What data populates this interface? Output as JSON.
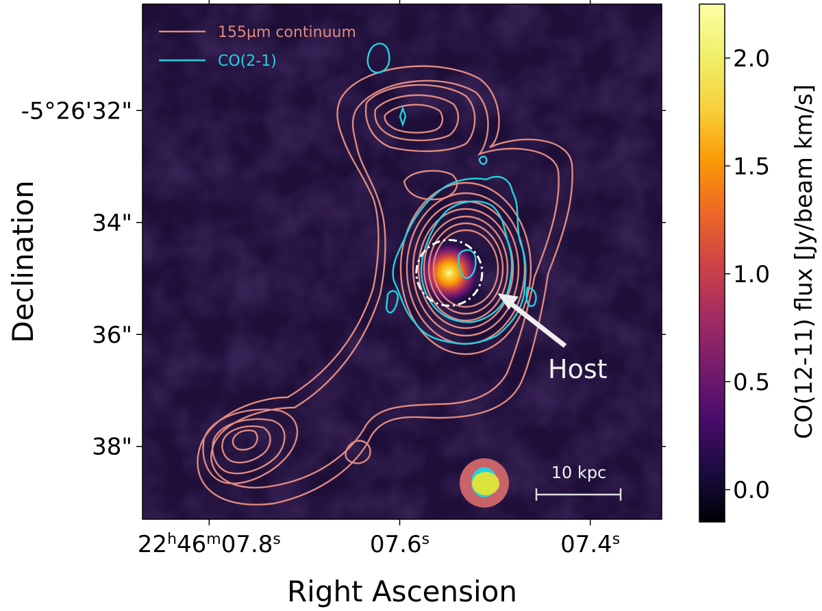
{
  "chart_data": {
    "type": "heatmap",
    "title": "",
    "xlabel": "Right Ascension",
    "ylabel": "Declination",
    "x_ticks": [
      {
        "label": "22h46m07.8s",
        "ra_seconds": 7.8
      },
      {
        "label": "07.6s",
        "ra_seconds": 7.6
      },
      {
        "label": "07.4s",
        "ra_seconds": 7.4
      }
    ],
    "y_ticks": [
      {
        "label": "-5°26'32\"",
        "dec_arcsec": 32
      },
      {
        "label": "34\"",
        "dec_arcsec": 34
      },
      {
        "label": "36\"",
        "dec_arcsec": 36
      },
      {
        "label": "38\"",
        "dec_arcsec": 38
      }
    ],
    "ra_range_seconds": [
      7.87,
      7.325
    ],
    "dec_range_arcsec": [
      30.1,
      39.3
    ],
    "colorbar": {
      "label": "CO(12-11) flux [Jy/beam km/s]",
      "colormap": "inferno",
      "min": -0.15,
      "max": 2.25,
      "ticks": [
        0.0,
        0.5,
        1.0,
        1.5,
        2.0
      ],
      "tick_labels": [
        "0.0",
        "0.5",
        "1.0",
        "1.5",
        "2.0"
      ]
    },
    "peak": {
      "ra_seconds": 7.548,
      "dec_arcsec": 34.9,
      "flux": 2.2
    },
    "legend": [
      {
        "label": "155µm continuum",
        "color": "#e08a7e"
      },
      {
        "label": "CO(2-1)",
        "color": "#22d3e0"
      }
    ],
    "annotations": [
      {
        "text": "Host",
        "color": "#f2f2f2"
      },
      {
        "text": "10 kpc",
        "color": "#dddddd"
      }
    ]
  },
  "colors": {
    "background_map": "#1e0f39",
    "continuum": "#e08a7e",
    "co21": "#22d3e0",
    "beam_continuum": "#c9636a",
    "beam_co21": "#22d3e0",
    "beam_co1211": "#dce33a",
    "host_circle": "#ffffff"
  }
}
